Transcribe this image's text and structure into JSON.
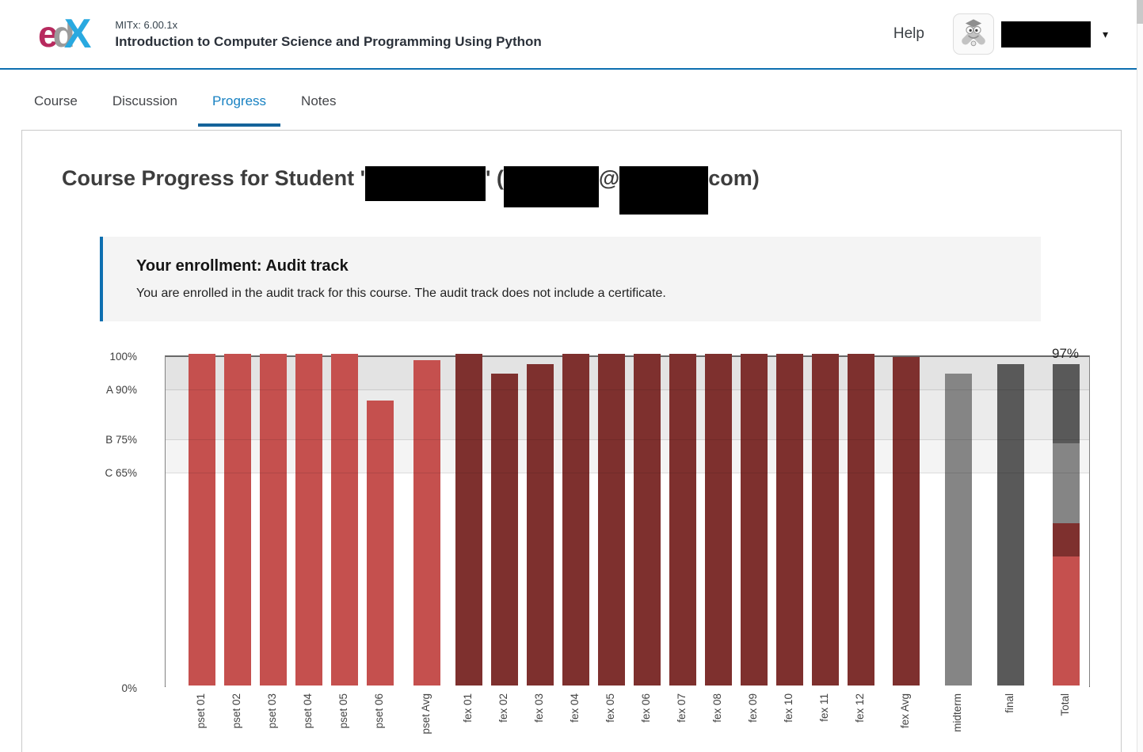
{
  "header": {
    "logo": {
      "letter_e": "e",
      "letter_d": "d",
      "letter_x": "X"
    },
    "course_org": "MITx: 6.00.1x",
    "course_title": "Introduction to Computer Science and Programming Using Python",
    "help_label": "Help",
    "caret_glyph": "▾"
  },
  "tabs": [
    {
      "label": "Course",
      "active": false
    },
    {
      "label": "Discussion",
      "active": false
    },
    {
      "label": "Progress",
      "active": true
    },
    {
      "label": "Notes",
      "active": false
    }
  ],
  "main": {
    "title": {
      "prefix": "Course Progress for Student '",
      "sep": "' (",
      "at": "@",
      "suffix": "com)"
    },
    "enrollment": {
      "heading": "Your enrollment: Audit track",
      "body": "You are enrolled in the audit track for this course. The audit track does not include a certificate."
    }
  },
  "chart_data": {
    "type": "bar",
    "ylim": [
      0,
      100
    ],
    "y_ticks": [
      {
        "label": "100%",
        "value": 100
      },
      {
        "label": "A 90%",
        "value": 90
      },
      {
        "label": "B 75%",
        "value": 75
      },
      {
        "label": "C 65%",
        "value": 65
      },
      {
        "label": "0%",
        "value": 0
      }
    ],
    "grade_bands": [
      {
        "from": 90,
        "to": 100,
        "color": "#e3e3e3"
      },
      {
        "from": 75,
        "to": 90,
        "color": "#ebebeb"
      },
      {
        "from": 65,
        "to": 75,
        "color": "#f4f4f4"
      },
      {
        "from": 0,
        "to": 65,
        "color": "#ffffff"
      }
    ],
    "gridlines": [
      90,
      75,
      65
    ],
    "colors": {
      "pset": "#c5504e",
      "fex": "#7e302e",
      "midterm": "#858585",
      "final": "#595959"
    },
    "annotation": {
      "text": "97%",
      "target": "Total"
    },
    "bars": [
      {
        "label": "pset 01",
        "value": 100,
        "color_key": "pset"
      },
      {
        "label": "pset 02",
        "value": 100,
        "color_key": "pset"
      },
      {
        "label": "pset 03",
        "value": 100,
        "color_key": "pset"
      },
      {
        "label": "pset 04",
        "value": 100,
        "color_key": "pset"
      },
      {
        "label": "pset 05",
        "value": 100,
        "color_key": "pset"
      },
      {
        "label": "pset 06",
        "value": 86,
        "color_key": "pset"
      },
      {
        "label": "pset Avg",
        "value": 98,
        "color_key": "pset",
        "gap_before": 14
      },
      {
        "label": "fex 01",
        "value": 100,
        "color_key": "fex",
        "gap_before": 8
      },
      {
        "label": "fex 02",
        "value": 94,
        "color_key": "fex"
      },
      {
        "label": "fex 03",
        "value": 97,
        "color_key": "fex"
      },
      {
        "label": "fex 04",
        "value": 100,
        "color_key": "fex"
      },
      {
        "label": "fex 05",
        "value": 100,
        "color_key": "fex"
      },
      {
        "label": "fex 06",
        "value": 100,
        "color_key": "fex"
      },
      {
        "label": "fex 07",
        "value": 100,
        "color_key": "fex"
      },
      {
        "label": "fex 08",
        "value": 100,
        "color_key": "fex"
      },
      {
        "label": "fex 09",
        "value": 100,
        "color_key": "fex"
      },
      {
        "label": "fex 10",
        "value": 100,
        "color_key": "fex"
      },
      {
        "label": "fex 11",
        "value": 100,
        "color_key": "fex"
      },
      {
        "label": "fex 12",
        "value": 100,
        "color_key": "fex"
      },
      {
        "label": "fex Avg",
        "value": 99,
        "color_key": "fex",
        "gap_before": 12
      },
      {
        "label": "midterm",
        "value": 94,
        "color_key": "midterm",
        "gap_before": 21
      },
      {
        "label": "final",
        "value": 97,
        "color_key": "final",
        "gap_before": 21
      },
      {
        "label": "Total",
        "color_key": "total",
        "gap_before": 25,
        "segments": [
          {
            "color_key": "pset",
            "value": 39
          },
          {
            "color_key": "fex",
            "value": 10
          },
          {
            "color_key": "midterm",
            "value": 24
          },
          {
            "color_key": "final",
            "value": 24
          }
        ]
      }
    ]
  }
}
